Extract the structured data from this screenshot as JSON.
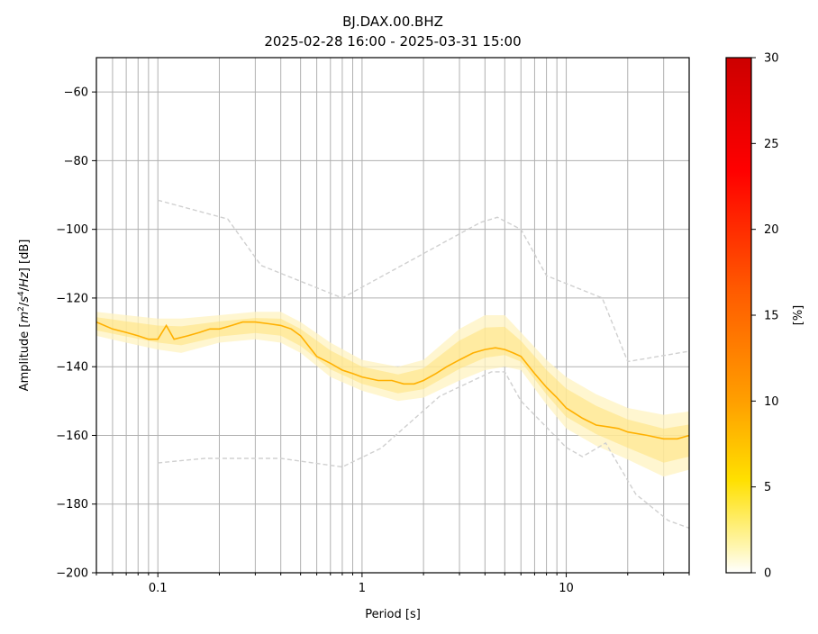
{
  "chart_data": {
    "type": "heatmap",
    "title": "BJ.DAX.00.BHZ",
    "subtitle": "2025-02-28 16:00 - 2025-03-31 15:00",
    "xlabel": "Period [s]",
    "ylabel_parts": [
      "Amplitude [",
      "m",
      "2",
      "/",
      "s",
      "4",
      "/",
      "Hz",
      "] [dB]"
    ],
    "x_scale": "log",
    "xlim": [
      0.05,
      40
    ],
    "ylim": [
      -200,
      -50
    ],
    "grid": true,
    "x_ticks": [
      0.1,
      1,
      10
    ],
    "x_tick_labels": [
      "0.1",
      "1",
      "10"
    ],
    "y_ticks": [
      -60,
      -80,
      -100,
      -120,
      -140,
      -160,
      -180,
      -200
    ],
    "y_tick_labels": [
      "−60",
      "−80",
      "−100",
      "−120",
      "−140",
      "−160",
      "−180",
      "−200"
    ],
    "colorbar": {
      "label": "[%]",
      "range": [
        0,
        30
      ],
      "ticks": [
        0,
        5,
        10,
        15,
        20,
        25,
        30
      ],
      "tick_labels": [
        "0",
        "5",
        "10",
        "15",
        "20",
        "25",
        "30"
      ],
      "colors": [
        "#ffffff",
        "#ffe000",
        "#ff9a00",
        "#ff5000",
        "#ff0000",
        "#cc0000"
      ]
    },
    "mode_line": {
      "color": "#ffb000",
      "period": [
        0.05,
        0.06,
        0.07,
        0.08,
        0.09,
        0.1,
        0.11,
        0.12,
        0.14,
        0.16,
        0.18,
        0.2,
        0.23,
        0.26,
        0.3,
        0.35,
        0.4,
        0.45,
        0.5,
        0.6,
        0.7,
        0.8,
        0.9,
        1.0,
        1.2,
        1.4,
        1.6,
        1.8,
        2.0,
        2.3,
        2.6,
        3.0,
        3.5,
        4.0,
        4.5,
        5.0,
        5.5,
        6.0,
        7.0,
        8.0,
        9.0,
        10.0,
        12.0,
        14.0,
        16.0,
        18.0,
        20.0,
        25.0,
        30.0,
        35.0,
        40.0
      ],
      "amplitude": [
        -127,
        -129,
        -130,
        -131,
        -132,
        -132,
        -128,
        -132,
        -131,
        -130,
        -129,
        -129,
        -128,
        -127,
        -127,
        -127.5,
        -128,
        -129,
        -131,
        -137,
        -139,
        -141,
        -142,
        -143,
        -144,
        -144,
        -145,
        -145,
        -144,
        -142,
        -140,
        -138,
        -136,
        -135,
        -134.5,
        -135,
        -136,
        -137,
        -142,
        -146,
        -149,
        -152,
        -155,
        -157,
        -157.5,
        -158,
        -159,
        -160,
        -161,
        -161,
        -160
      ]
    },
    "reference_high": {
      "color": "#d0d0d0",
      "period": [
        0.1,
        0.22,
        0.32,
        0.8,
        3.8,
        4.6,
        6.0,
        8.0,
        15.0,
        20.0,
        40.0
      ],
      "amplitude": [
        -91.5,
        -97,
        -110.5,
        -120,
        -98,
        -96.5,
        -100,
        -113.5,
        -120,
        -138.5,
        -135.5
      ]
    },
    "reference_low": {
      "color": "#d0d0d0",
      "period": [
        0.1,
        0.17,
        0.4,
        0.8,
        1.24,
        2.4,
        4.3,
        5.0,
        6.0,
        10.0,
        12.0,
        15.6,
        21.9,
        31.6,
        40.0
      ],
      "amplitude": [
        -168,
        -166.7,
        -166.7,
        -169.2,
        -163.7,
        -148.6,
        -141.5,
        -141.5,
        -150,
        -163.5,
        -166.2,
        -162.2,
        -177.1,
        -184.8,
        -187
      ]
    },
    "density_band": {
      "period": [
        0.05,
        0.07,
        0.1,
        0.13,
        0.2,
        0.3,
        0.4,
        0.5,
        0.7,
        1.0,
        1.5,
        2.0,
        3.0,
        4.0,
        5.0,
        6.0,
        8.0,
        10.0,
        14.0,
        20.0,
        30.0,
        40.0
      ],
      "upper": [
        -124,
        -125,
        -126,
        -126,
        -125,
        -124,
        -124,
        -127,
        -133,
        -138,
        -140,
        -138,
        -129,
        -125,
        -125,
        -130,
        -138,
        -143,
        -148,
        -152,
        -154,
        -153
      ],
      "lower": [
        -131,
        -133,
        -135,
        -136,
        -133,
        -132,
        -133,
        -136,
        -143,
        -147,
        -150,
        -149,
        -144,
        -141,
        -140,
        -141,
        -151,
        -158,
        -163,
        -167,
        -172,
        -170
      ]
    }
  }
}
